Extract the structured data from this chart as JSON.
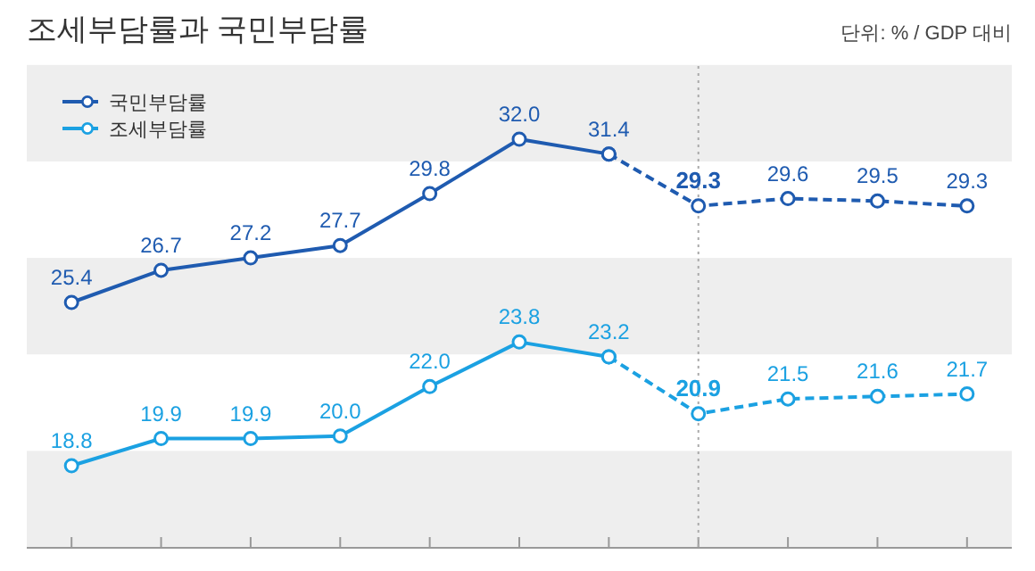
{
  "chart_data": {
    "type": "line",
    "title": "조세부담률과 국민부담률",
    "subtitle": "단위: % / GDP 대비",
    "categories": [
      null,
      null,
      null,
      null,
      null,
      null,
      null,
      null,
      null,
      null,
      null
    ],
    "series": [
      {
        "name": "국민부담률",
        "color": "#1f5bb0",
        "line_style": "solid",
        "values": [
          25.4,
          26.7,
          27.2,
          27.7,
          29.8,
          32.0,
          31.4,
          null,
          null,
          null,
          null
        ],
        "value_labels": [
          "25.4",
          "26.7",
          "27.2",
          "27.7",
          "29.8",
          "32.0",
          "31.4",
          null,
          null,
          null,
          null
        ]
      },
      {
        "color": "#1f5bb0",
        "line_style": "dashed",
        "values": [
          null,
          null,
          null,
          null,
          null,
          null,
          31.4,
          29.3,
          29.6,
          29.5,
          29.3
        ],
        "value_labels": [
          null,
          null,
          null,
          null,
          null,
          null,
          null,
          "29.3",
          "29.6",
          "29.5",
          "29.3"
        ]
      },
      {
        "name": "조세부담률",
        "color": "#1ba1e2",
        "line_style": "solid",
        "values": [
          18.8,
          19.9,
          19.9,
          20.0,
          22.0,
          23.8,
          23.2,
          null,
          null,
          null,
          null
        ],
        "value_labels": [
          "18.8",
          "19.9",
          "19.9",
          "20.0",
          "22.0",
          "23.8",
          "23.2",
          null,
          null,
          null,
          null
        ]
      },
      {
        "color": "#1ba1e2",
        "line_style": "dashed",
        "values": [
          null,
          null,
          null,
          null,
          null,
          null,
          23.2,
          20.9,
          21.5,
          21.6,
          21.7
        ],
        "value_labels": [
          null,
          null,
          null,
          null,
          null,
          null,
          null,
          "20.9",
          "21.5",
          "21.6",
          "21.7"
        ]
      }
    ],
    "bands": [
      {
        "axis": "y",
        "from": 31.1,
        "to": 35.0,
        "color": "#eeeeee"
      },
      {
        "axis": "y",
        "from": 23.3,
        "to": 27.2,
        "color": "#eeeeee"
      },
      {
        "axis": "y",
        "from": 15.5,
        "to": 19.4,
        "color": "#eeeeee"
      }
    ],
    "marker": "circle",
    "legend": "top left"
  }
}
